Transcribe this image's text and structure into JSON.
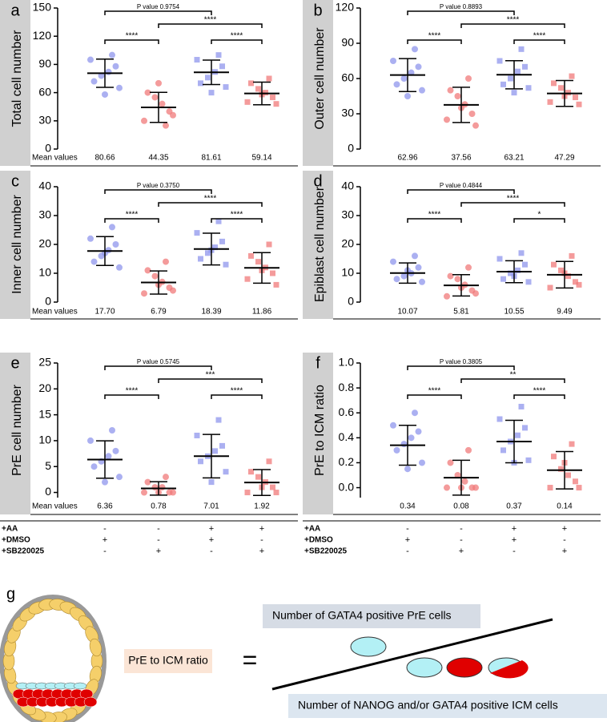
{
  "chart_data": [
    {
      "type": "dot",
      "panel": "a",
      "ylabel": "Total cell number",
      "ylim": [
        0,
        150
      ],
      "yticks": [
        0,
        30,
        60,
        90,
        120,
        150
      ],
      "mean_values_label": "Mean values",
      "series": [
        {
          "color": "#8f95ec",
          "marker": "circle",
          "values": [
            95,
            88,
            82,
            78,
            72,
            65,
            100,
            58
          ],
          "mean": 80.66,
          "sd": 15
        },
        {
          "color": "#f07a7a",
          "marker": "circle",
          "values": [
            30,
            40,
            48,
            55,
            60,
            36,
            25,
            70
          ],
          "mean": 44.35,
          "sd": 16
        },
        {
          "color": "#8f95ec",
          "marker": "square",
          "values": [
            95,
            88,
            82,
            76,
            70,
            66,
            100,
            60
          ],
          "mean": 81.61,
          "sd": 13
        },
        {
          "color": "#f07a7a",
          "marker": "square",
          "values": [
            50,
            55,
            60,
            64,
            70,
            48,
            75,
            58
          ],
          "mean": 59.14,
          "sd": 12
        }
      ],
      "brackets": [
        {
          "label": "P value  0.9754",
          "from": 0,
          "to": 2
        },
        {
          "label": "****",
          "from": 1,
          "to": 3
        },
        {
          "label": "****",
          "from": 0,
          "to": 1
        },
        {
          "label": "****",
          "from": 2,
          "to": 3
        }
      ]
    },
    {
      "type": "dot",
      "panel": "b",
      "ylabel": "Outer cell number",
      "ylim": [
        0,
        120
      ],
      "yticks": [
        0,
        30,
        60,
        90,
        120
      ],
      "series": [
        {
          "color": "#8f95ec",
          "marker": "circle",
          "values": [
            75,
            70,
            65,
            60,
            55,
            50,
            85,
            45
          ],
          "mean": 62.96,
          "sd": 14
        },
        {
          "color": "#f07a7a",
          "marker": "circle",
          "values": [
            25,
            30,
            38,
            45,
            50,
            20,
            60,
            35
          ],
          "mean": 37.56,
          "sd": 15
        },
        {
          "color": "#8f95ec",
          "marker": "square",
          "values": [
            75,
            70,
            66,
            60,
            55,
            52,
            85,
            48
          ],
          "mean": 63.21,
          "sd": 12
        },
        {
          "color": "#f07a7a",
          "marker": "square",
          "values": [
            40,
            44,
            48,
            52,
            56,
            38,
            62,
            45
          ],
          "mean": 47.29,
          "sd": 11
        }
      ],
      "brackets": [
        {
          "label": "P value  0.8893",
          "from": 0,
          "to": 2
        },
        {
          "label": "****",
          "from": 1,
          "to": 3
        },
        {
          "label": "****",
          "from": 0,
          "to": 1
        },
        {
          "label": "****",
          "from": 2,
          "to": 3
        }
      ]
    },
    {
      "type": "dot",
      "panel": "c",
      "ylabel": "Inner cell number",
      "ylim": [
        0,
        40
      ],
      "yticks": [
        0,
        10,
        20,
        30,
        40
      ],
      "mean_values_label": "Mean values",
      "series": [
        {
          "color": "#8f95ec",
          "marker": "circle",
          "values": [
            22,
            20,
            18,
            16,
            14,
            12,
            26,
            17
          ],
          "mean": 17.7,
          "mean_label": "17.70",
          "sd": 5
        },
        {
          "color": "#f07a7a",
          "marker": "circle",
          "values": [
            3,
            5,
            7,
            9,
            11,
            4,
            14,
            6
          ],
          "mean": 6.79,
          "sd": 4
        },
        {
          "color": "#8f95ec",
          "marker": "square",
          "values": [
            24,
            21,
            19,
            17,
            15,
            13,
            28,
            18
          ],
          "mean": 18.39,
          "sd": 5.5
        },
        {
          "color": "#f07a7a",
          "marker": "square",
          "values": [
            8,
            10,
            12,
            14,
            16,
            6,
            20,
            11
          ],
          "mean": 11.86,
          "sd": 5.3
        }
      ],
      "brackets": [
        {
          "label": "P value  0.3750",
          "from": 0,
          "to": 2
        },
        {
          "label": "****",
          "from": 1,
          "to": 3
        },
        {
          "label": "****",
          "from": 0,
          "to": 1
        },
        {
          "label": "****",
          "from": 2,
          "to": 3
        }
      ]
    },
    {
      "type": "dot",
      "panel": "d",
      "ylabel": "Epiblast cell number",
      "ylim": [
        0,
        40
      ],
      "yticks": [
        0,
        10,
        20,
        30,
        40
      ],
      "series": [
        {
          "color": "#8f95ec",
          "marker": "circle",
          "values": [
            14,
            12,
            10,
            9,
            8,
            7,
            16,
            11
          ],
          "mean": 10.07,
          "sd": 3.5
        },
        {
          "color": "#f07a7a",
          "marker": "circle",
          "values": [
            2,
            4,
            6,
            8,
            9,
            3,
            12,
            5
          ],
          "mean": 5.81,
          "sd": 3.7
        },
        {
          "color": "#8f95ec",
          "marker": "square",
          "values": [
            15,
            13,
            11,
            10,
            8,
            7,
            17,
            9
          ],
          "mean": 10.55,
          "sd": 3.8
        },
        {
          "color": "#f07a7a",
          "marker": "square",
          "values": [
            5,
            7,
            9,
            11,
            13,
            6,
            16,
            10
          ],
          "mean": 9.49,
          "sd": 4.6
        }
      ],
      "brackets": [
        {
          "label": "P value  0.4844",
          "from": 0,
          "to": 2
        },
        {
          "label": "****",
          "from": 1,
          "to": 3
        },
        {
          "label": "****",
          "from": 0,
          "to": 1
        },
        {
          "label": "*",
          "from": 2,
          "to": 3
        }
      ]
    },
    {
      "type": "dot",
      "panel": "e",
      "ylabel": "PrE cell number",
      "ylim": [
        -1,
        25
      ],
      "yticks": [
        0,
        5,
        10,
        15,
        20,
        25
      ],
      "mean_values_label": "Mean values",
      "series": [
        {
          "color": "#8f95ec",
          "marker": "circle",
          "values": [
            10,
            8,
            7,
            6,
            5,
            3,
            12,
            2
          ],
          "mean": 6.36,
          "sd": 3.6
        },
        {
          "color": "#f07a7a",
          "marker": "circle",
          "values": [
            0,
            0,
            1,
            1,
            2,
            0,
            3,
            0
          ],
          "mean": 0.78,
          "sd": 1.3
        },
        {
          "color": "#8f95ec",
          "marker": "square",
          "values": [
            11,
            9,
            8,
            7,
            6,
            4,
            14,
            2
          ],
          "mean": 7.01,
          "sd": 4.2
        },
        {
          "color": "#f07a7a",
          "marker": "square",
          "values": [
            0,
            1,
            2,
            3,
            4,
            0,
            6,
            1
          ],
          "mean": 1.92,
          "sd": 2.5
        }
      ],
      "brackets": [
        {
          "label": "P value  0.5745",
          "from": 0,
          "to": 2
        },
        {
          "label": "***",
          "from": 1,
          "to": 3
        },
        {
          "label": "****",
          "from": 0,
          "to": 1
        },
        {
          "label": "****",
          "from": 2,
          "to": 3
        }
      ]
    },
    {
      "type": "dot",
      "panel": "f",
      "ylabel": "PrE to ICM ratio",
      "ylim": [
        -0.08,
        1
      ],
      "yticks": [
        {
          "value": 0,
          "label": "0.0"
        },
        0.2,
        0.4,
        0.6,
        0.8,
        {
          "value": 1,
          "label": "1.0"
        }
      ],
      "series": [
        {
          "color": "#8f95ec",
          "marker": "circle",
          "values": [
            0.5,
            0.45,
            0.4,
            0.35,
            0.3,
            0.2,
            0.6,
            0.15
          ],
          "mean": 0.34,
          "sd": 0.16
        },
        {
          "color": "#f07a7a",
          "marker": "circle",
          "values": [
            0,
            0,
            0.05,
            0.1,
            0.2,
            0,
            0.3,
            0
          ],
          "mean": 0.08,
          "sd": 0.14
        },
        {
          "color": "#8f95ec",
          "marker": "square",
          "values": [
            0.55,
            0.48,
            0.42,
            0.37,
            0.3,
            0.22,
            0.65,
            0.2
          ],
          "mean": 0.37,
          "sd": 0.17
        },
        {
          "color": "#f07a7a",
          "marker": "square",
          "values": [
            0,
            0.05,
            0.1,
            0.15,
            0.25,
            0,
            0.35,
            0.2
          ],
          "mean": 0.14,
          "sd": 0.15
        }
      ],
      "brackets": [
        {
          "label": "P value  0.3805",
          "from": 0,
          "to": 2
        },
        {
          "label": "**",
          "from": 1,
          "to": 3
        },
        {
          "label": "****",
          "from": 0,
          "to": 1
        },
        {
          "label": "****",
          "from": 2,
          "to": 3
        }
      ]
    }
  ],
  "conditions": [
    {
      "name": "+AA",
      "values": [
        "-",
        "-",
        "+",
        "+"
      ]
    },
    {
      "name": "+DMSO",
      "values": [
        "+",
        "-",
        "+",
        "-"
      ]
    },
    {
      "name": "+SB220025",
      "values": [
        "-",
        "+",
        "-",
        "+"
      ]
    }
  ],
  "diagram": {
    "label": "g",
    "ratio_label": "PrE to ICM ratio",
    "equals": "=",
    "numerator": "Number of GATA4 positive PrE cells",
    "denominator": "Number of NANOG and/or GATA4 positive ICM cells"
  }
}
